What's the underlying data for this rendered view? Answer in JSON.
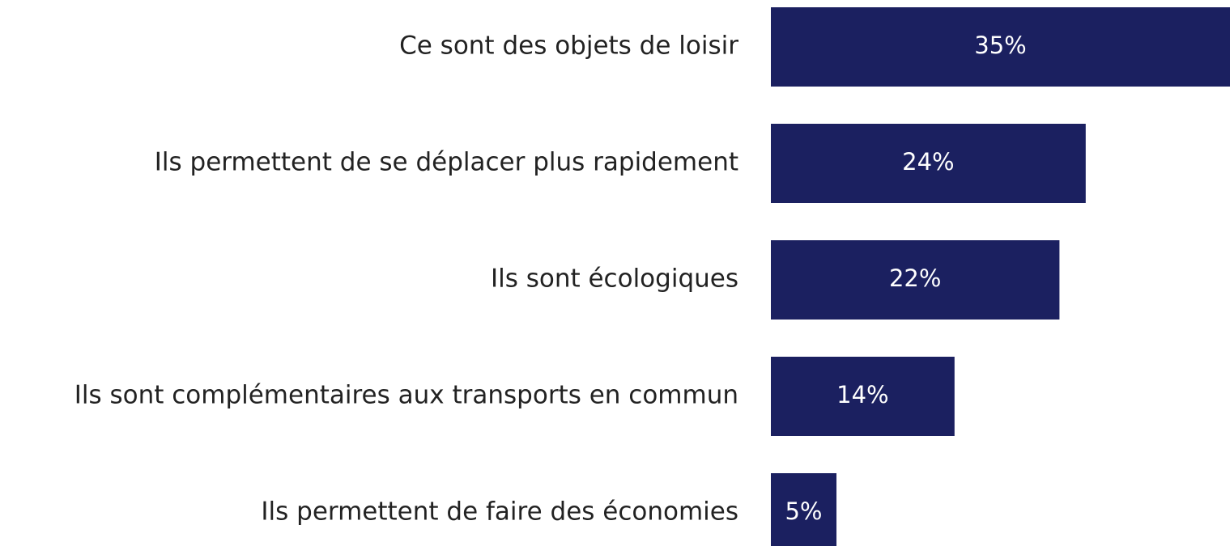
{
  "chart_data": {
    "type": "hbar",
    "categories": [
      "Ce sont des objets de loisir",
      "Ils permettent de se déplacer plus rapidement",
      "Ils sont écologiques",
      "Ils sont complémentaires aux transports en commun",
      "Ils permettent de faire des économies"
    ],
    "values": [
      35,
      24,
      22,
      14,
      5
    ],
    "value_labels": [
      "35%",
      "24%",
      "22%",
      "14%",
      "5%"
    ],
    "color": "#1b2060",
    "xlim": [
      0,
      35
    ]
  }
}
